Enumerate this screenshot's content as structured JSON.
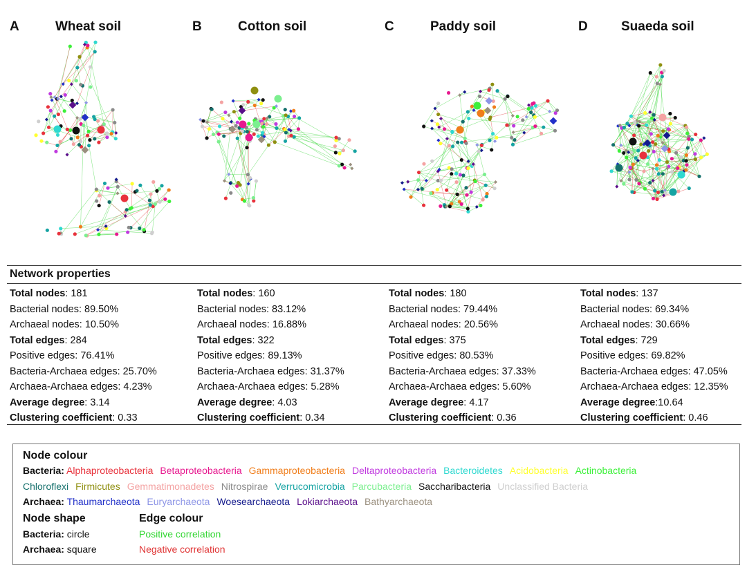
{
  "panels": [
    {
      "letter": "A",
      "title": "Wheat soil"
    },
    {
      "letter": "B",
      "title": "Cotton soil"
    },
    {
      "letter": "C",
      "title": "Paddy soil"
    },
    {
      "letter": "D",
      "title": "Suaeda soil"
    }
  ],
  "network_properties": {
    "heading": "Network properties",
    "columns": [
      [
        {
          "label": "Total nodes",
          "value": ": 181",
          "bold": true
        },
        {
          "label": "Bacterial nodes: 89.50%",
          "value": "",
          "bold": false
        },
        {
          "label": "Archaeal nodes: 10.50%",
          "value": "",
          "bold": false
        },
        {
          "label": "Total edges",
          "value": ": 284",
          "bold": true
        },
        {
          "label": "Positive edges: 76.41%",
          "value": "",
          "bold": false
        },
        {
          "label": "Bacteria-Archaea edges: 25.70%",
          "value": "",
          "bold": false
        },
        {
          "label": "Archaea-Archaea edges: 4.23%",
          "value": "",
          "bold": false
        },
        {
          "label": "Average degree",
          "value": ": 3.14",
          "bold": true
        },
        {
          "label": "Clustering coefficient",
          "value": ": 0.33",
          "bold": true
        }
      ],
      [
        {
          "label": "Total nodes",
          "value": ": 160",
          "bold": true
        },
        {
          "label": "Bacterial nodes: 83.12%",
          "value": "",
          "bold": false
        },
        {
          "label": "Archaeal nodes: 16.88%",
          "value": "",
          "bold": false
        },
        {
          "label": "Total edges",
          "value": ": 322",
          "bold": true
        },
        {
          "label": "Positive edges: 89.13%",
          "value": "",
          "bold": false
        },
        {
          "label": "Bacteria-Archaea edges: 31.37%",
          "value": "",
          "bold": false
        },
        {
          "label": "Archaea-Archaea edges: 5.28%",
          "value": "",
          "bold": false
        },
        {
          "label": "Average degree",
          "value": ": 4.03",
          "bold": true
        },
        {
          "label": "Clustering coefficient",
          "value": ": 0.34",
          "bold": true
        }
      ],
      [
        {
          "label": "Total nodes",
          "value": ": 180",
          "bold": true
        },
        {
          "label": "Bacterial nodes: 79.44%",
          "value": "",
          "bold": false
        },
        {
          "label": "Archaeal nodes: 20.56%",
          "value": "",
          "bold": false
        },
        {
          "label": "Total edges",
          "value": ": 375",
          "bold": true
        },
        {
          "label": "Positive edges: 80.53%",
          "value": "",
          "bold": false
        },
        {
          "label": "Bacteria-Archaea edges: 37.33%",
          "value": "",
          "bold": false
        },
        {
          "label": "Archaea-Archaea edges: 5.60%",
          "value": "",
          "bold": false
        },
        {
          "label": "Average degree",
          "value": ": 4.17",
          "bold": true
        },
        {
          "label": "Clustering coefficient",
          "value": ": 0.36",
          "bold": true
        }
      ],
      [
        {
          "label": "Total nodes",
          "value": ": 137",
          "bold": true
        },
        {
          "label": "Bacterial nodes: 69.34%",
          "value": "",
          "bold": false
        },
        {
          "label": "Archaeal nodes: 30.66%",
          "value": "",
          "bold": false
        },
        {
          "label": "Total edges",
          "value": ": 729",
          "bold": true
        },
        {
          "label": "Positive edges: 69.82%",
          "value": "",
          "bold": false
        },
        {
          "label": "Bacteria-Archaea edges: 47.05%",
          "value": "",
          "bold": false
        },
        {
          "label": "Archaea-Archaea edges: 12.35%",
          "value": "",
          "bold": false
        },
        {
          "label": "Average degree",
          "value": ":10.64",
          "bold": true
        },
        {
          "label": "Clustering coefficient",
          "value": ": 0.46",
          "bold": true
        }
      ]
    ]
  },
  "legend": {
    "node_colour_heading": "Node colour",
    "bacteria_label": "Bacteria:",
    "bacteria_row1": [
      {
        "name": "Alphaproteobacteria",
        "color": "#e8323c"
      },
      {
        "name": "Betaproteobacteria",
        "color": "#e7198f"
      },
      {
        "name": "Gammaproteobacteria",
        "color": "#f07d1a"
      },
      {
        "name": "Deltaproteobacteria",
        "color": "#c03adf"
      },
      {
        "name": "Bacteroidetes",
        "color": "#2fd9d0"
      },
      {
        "name": "Acidobacteria",
        "color": "#ffff30"
      },
      {
        "name": "Actinobacteria",
        "color": "#3df03a"
      }
    ],
    "bacteria_row2": [
      {
        "name": "Chloroflexi",
        "color": "#15706c"
      },
      {
        "name": "Firmicutes",
        "color": "#8f8f10"
      },
      {
        "name": "Gemmatimonadetes",
        "color": "#f4a3a3"
      },
      {
        "name": "Nitrospirae",
        "color": "#8a8a8a"
      },
      {
        "name": "Verrucomicrobia",
        "color": "#16a3a3"
      },
      {
        "name": "Parcubacteria",
        "color": "#7cef8f"
      },
      {
        "name": "Saccharibacteria",
        "color": "#111111"
      },
      {
        "name": "Unclassified Bacteria",
        "color": "#cfcfcf"
      }
    ],
    "archaea_label": "Archaea:",
    "archaea_row": [
      {
        "name": "Thaumarchaeota",
        "color": "#2130c8"
      },
      {
        "name": "Euryarchaeota",
        "color": "#8d95e6"
      },
      {
        "name": "Woesearchaeota",
        "color": "#141a8c"
      },
      {
        "name": "Lokiarchaeota",
        "color": "#5a0f8a"
      },
      {
        "name": "Bathyarchaeota",
        "color": "#9a8f7e"
      }
    ],
    "node_shape_heading": "Node shape",
    "shape_bacteria_label": "Bacteria:",
    "shape_bacteria_value": " circle",
    "shape_archaea_label": "Archaea:",
    "shape_archaea_value": " square",
    "edge_colour_heading": "Edge colour",
    "edge_positive": {
      "name": "Positive correlation",
      "color": "#33d633"
    },
    "edge_negative": {
      "name": "Negative correlation",
      "color": "#e03434"
    }
  }
}
